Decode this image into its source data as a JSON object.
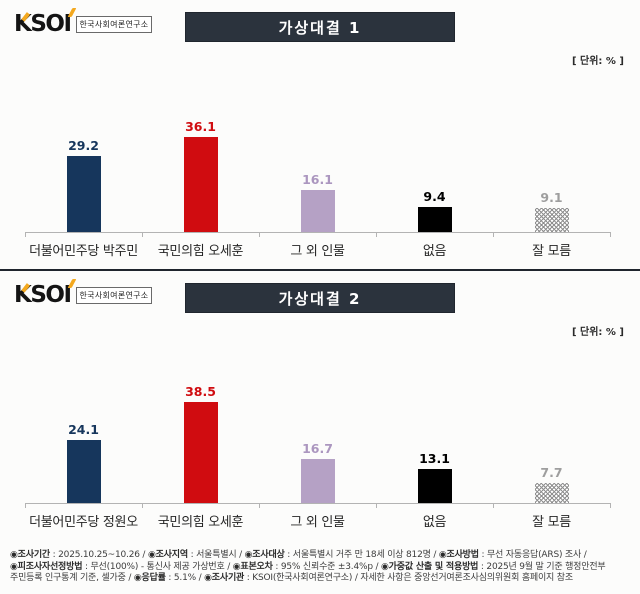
{
  "brand": {
    "logo_text_k": "K",
    "logo_text_so": "SO",
    "logo_text_i": "I",
    "institute": "한국사회여론연구소"
  },
  "chart_data": [
    {
      "type": "bar",
      "title": "가상대결 1",
      "unit_label": "[ 단위: % ]",
      "categories": [
        "더불어민주당 박주민",
        "국민의힘 오세훈",
        "그 외 인물",
        "없음",
        "잘 모름"
      ],
      "values": [
        29.2,
        36.1,
        16.1,
        9.4,
        9.1
      ],
      "colors": [
        "#16365c",
        "#d00c10",
        "#b5a1c5",
        "#000000",
        "hatch"
      ],
      "label_colors": [
        "#16365c",
        "#d00c10",
        "#ab96bf",
        "#000000",
        "#9e9e9e"
      ],
      "ylim": [
        0,
        45
      ],
      "grid": false,
      "legend": "none"
    },
    {
      "type": "bar",
      "title": "가상대결 2",
      "unit_label": "[ 단위: % ]",
      "categories": [
        "더불어민주당 정원오",
        "국민의힘 오세훈",
        "그 외 인물",
        "없음",
        "잘 모름"
      ],
      "values": [
        24.1,
        38.5,
        16.7,
        13.1,
        7.7
      ],
      "colors": [
        "#16365c",
        "#d00c10",
        "#b5a1c5",
        "#000000",
        "hatch"
      ],
      "label_colors": [
        "#16365c",
        "#d00c10",
        "#ab96bf",
        "#000000",
        "#9e9e9e"
      ],
      "ylim": [
        0,
        45
      ],
      "grid": false,
      "legend": "none"
    }
  ],
  "footer": {
    "lines": [
      [
        {
          "label": "◉조사기간",
          "text": " : 2025.10.25~10.26 / "
        },
        {
          "label": "◉조사지역",
          "text": " : 서울특별시 / "
        },
        {
          "label": "◉조사대상",
          "text": " : 서울특별시 거주 만 18세 이상 812명 / "
        },
        {
          "label": "◉조사방법",
          "text": " : 무선 자동응답(ARS) 조사 /"
        }
      ],
      [
        {
          "label": "◉피조사자선정방법",
          "text": " : 무선(100%) - 통신사 제공 가상번호 / "
        },
        {
          "label": "◉표본오차",
          "text": " : 95% 신뢰수준 ±3.4%p / "
        },
        {
          "label": "◉가중값 산출 및 적용방법",
          "text": " : 2025년 9월 말 기준 행정안전부"
        }
      ],
      [
        {
          "label": "",
          "text": "주민등록 인구통계 기준, 셀가중 / "
        },
        {
          "label": "◉응답률",
          "text": " : 5.1% / "
        },
        {
          "label": "◉조사기관",
          "text": " : KSOI(한국사회여론연구소) / 자세한 사항은 중앙선거여론조사심의위원회 홈페이지 참조"
        }
      ]
    ]
  }
}
